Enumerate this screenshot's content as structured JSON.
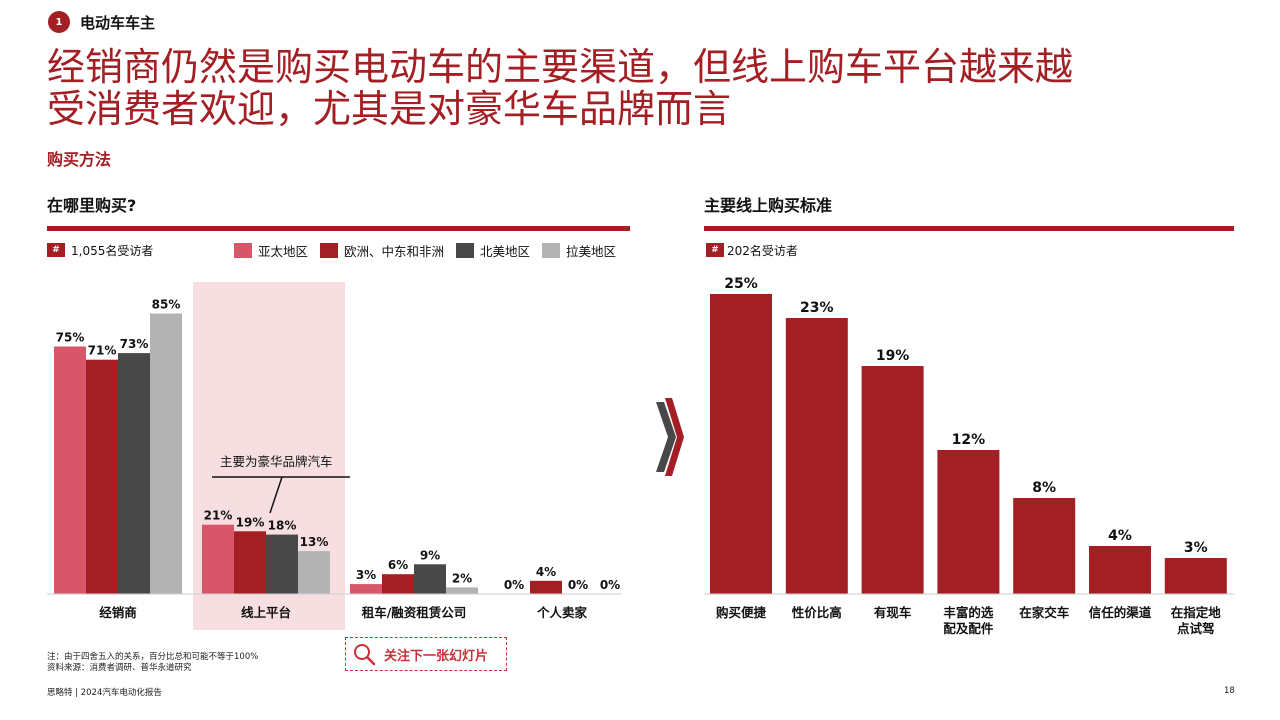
{
  "section": {
    "number": "1",
    "title": "电动车车主"
  },
  "headline": {
    "line1": "经销商仍然是购买电动车的主要渠道，但线上购车平台越来越",
    "line2": "受消费者欢迎，尤其是对豪华车品牌而言"
  },
  "subheading": "购买方法",
  "left_panel": {
    "title": "在哪里购买?",
    "hash_label": "#",
    "sample": "1,055名受访者",
    "annotation": "主要为豪华品牌汽车"
  },
  "right_panel": {
    "title": "主要线上购买标准",
    "hash_label": "#",
    "sample": "202名受访者"
  },
  "colors": {
    "accent": "#a31f24",
    "apac": "#d8566a",
    "emea": "#a31f24",
    "na": "#484848",
    "latam": "#b3b3b3",
    "highlight": "#f7dfe1"
  },
  "chart_data": [
    {
      "type": "bar",
      "title": "在哪里购买?",
      "categories": [
        "经销商",
        "线上平台",
        "租车/融资租赁公司",
        "个人卖家"
      ],
      "series": [
        {
          "name": "亚太地区",
          "values": [
            75,
            21,
            3,
            0
          ],
          "labels": [
            "75%",
            "21%",
            "3%",
            "0%"
          ]
        },
        {
          "name": "欧洲、中东和非洲",
          "values": [
            71,
            19,
            6,
            4
          ],
          "labels": [
            "71%",
            "19%",
            "6%",
            "4%"
          ]
        },
        {
          "name": "北美地区",
          "values": [
            73,
            18,
            9,
            0
          ],
          "labels": [
            "73%",
            "18%",
            "9%",
            "0%"
          ]
        },
        {
          "name": "拉美地区",
          "values": [
            85,
            13,
            2,
            0
          ],
          "labels": [
            "85%",
            "13%",
            "2%",
            "0%"
          ]
        }
      ],
      "ylim": [
        0,
        100
      ],
      "highlighted_category": "线上平台",
      "legend": "top"
    },
    {
      "type": "bar",
      "title": "主要线上购买标准",
      "categories": [
        "购买便捷",
        "性价比高",
        "有现车",
        "丰富的选配及配件",
        "在家交车",
        "信任的渠道",
        "在指定地点试驾"
      ],
      "category_lines": [
        [
          "购买便捷"
        ],
        [
          "性价比高"
        ],
        [
          "有现车"
        ],
        [
          "丰富的选",
          "配及配件"
        ],
        [
          "在家交车"
        ],
        [
          "信任的渠道"
        ],
        [
          "在指定地",
          "点试驾"
        ]
      ],
      "values": [
        25,
        23,
        19,
        12,
        8,
        4,
        3
      ],
      "labels": [
        "25%",
        "23%",
        "19%",
        "12%",
        "8%",
        "4%",
        "3%"
      ],
      "ylim": [
        0,
        25
      ]
    }
  ],
  "cta": {
    "label": "关注下一张幻灯片"
  },
  "footnote": {
    "note": "注：由于四舍五入的关系，百分比总和可能不等于100%",
    "source": "资料来源：消费者调研、普华永道研究"
  },
  "footer": {
    "report": "思略特 | 2024汽车电动化报告",
    "page": "18"
  }
}
